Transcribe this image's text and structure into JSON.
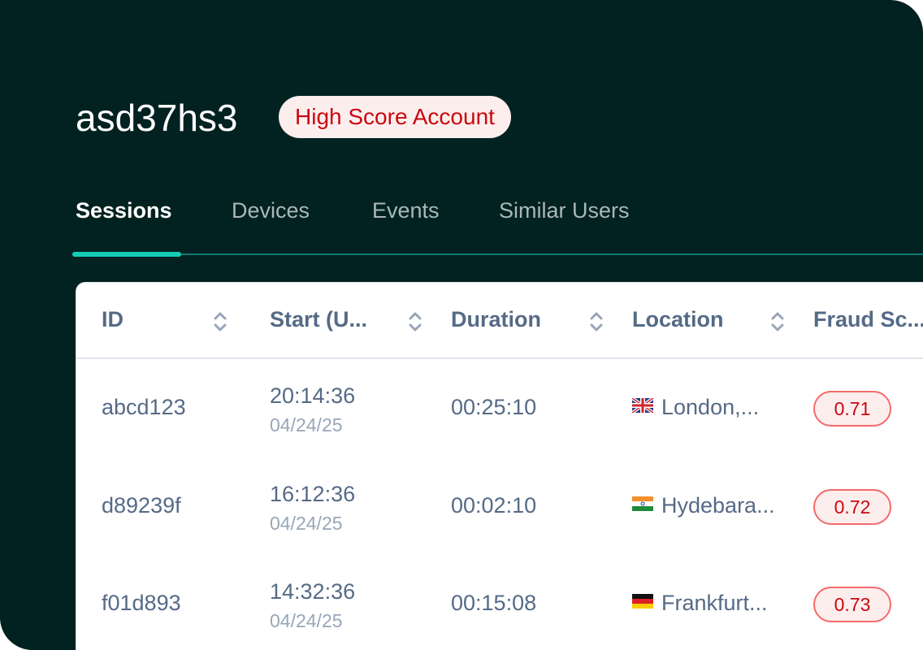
{
  "account": {
    "id": "asd37hs3",
    "badge": "High Score Account"
  },
  "tabs": [
    {
      "label": "Sessions",
      "active": true
    },
    {
      "label": "Devices"
    },
    {
      "label": "Events"
    },
    {
      "label": "Similar Users"
    }
  ],
  "table": {
    "columns": [
      "ID",
      "Start (U...",
      "Duration",
      "Location",
      "Fraud Sc..."
    ],
    "rows": [
      {
        "id": "abcd123",
        "time": "20:14:36",
        "date": "04/24/25",
        "duration": "00:25:10",
        "flag": "uk-flag",
        "location": "London,...",
        "score": "0.71"
      },
      {
        "id": "d89239f",
        "time": "16:12:36",
        "date": "04/24/25",
        "duration": "00:02:10",
        "flag": "india-flag",
        "location": "Hydebara...",
        "score": "0.72"
      },
      {
        "id": "f01d893",
        "time": "14:32:36",
        "date": "04/24/25",
        "duration": "00:15:08",
        "flag": "germany-flag",
        "location": "Frankfurt...",
        "score": "0.73"
      }
    ]
  },
  "colors": {
    "background": "#012220",
    "accent": "#15cdb7",
    "danger": "#c8090f"
  }
}
